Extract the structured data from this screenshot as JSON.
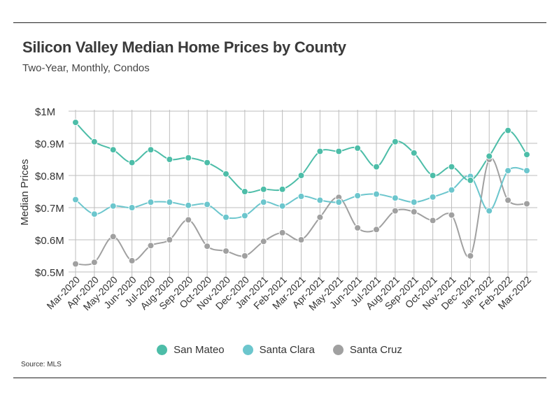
{
  "header": {
    "title": "Silicon Valley Median Home Prices by County",
    "subtitle": "Two-Year, Monthly, Condos"
  },
  "source": "Source:  MLS",
  "chart_data": {
    "type": "line",
    "ylabel": "Median Prices",
    "ylim": [
      0.5,
      1.0
    ],
    "y_ticks": [
      1.0,
      0.9,
      0.8,
      0.7,
      0.6,
      0.5
    ],
    "y_tick_labels": [
      "$1M",
      "$0.9M",
      "$0.8M",
      "$0.7M",
      "$0.6M",
      "$0.5M"
    ],
    "grid": true,
    "legend_position": "bottom-center",
    "categories": [
      "Mar-2020",
      "Apr-2020",
      "May-2020",
      "Jun-2020",
      "Jul-2020",
      "Aug-2020",
      "Sep-2020",
      "Oct-2020",
      "Nov-2020",
      "Dec-2020",
      "Jan-2021",
      "Feb-2021",
      "Mar-2021",
      "Apr-2021",
      "May-2021",
      "Jun-2021",
      "Jul-2021",
      "Aug-2021",
      "Sep-2021",
      "Oct-2021",
      "Nov-2021",
      "Dec-2021",
      "Jan-2022",
      "Feb-2022",
      "Mar-2022"
    ],
    "series": [
      {
        "name": "San Mateo",
        "color": "#4dbda8",
        "values": [
          0.965,
          0.905,
          0.88,
          0.84,
          0.88,
          0.85,
          0.855,
          0.84,
          0.805,
          0.75,
          0.757,
          0.757,
          0.8,
          0.875,
          0.875,
          0.885,
          0.827,
          0.905,
          0.87,
          0.8,
          0.827,
          0.785,
          0.86,
          0.94,
          0.865
        ]
      },
      {
        "name": "Santa Clara",
        "color": "#6cc6cd",
        "values": [
          0.725,
          0.68,
          0.705,
          0.7,
          0.717,
          0.717,
          0.707,
          0.71,
          0.67,
          0.675,
          0.717,
          0.705,
          0.735,
          0.723,
          0.717,
          0.737,
          0.742,
          0.73,
          0.717,
          0.733,
          0.755,
          0.797,
          0.69,
          0.815,
          0.815
        ]
      },
      {
        "name": "Santa Cruz",
        "color": "#a0a0a0",
        "values": [
          0.525,
          0.53,
          0.61,
          0.535,
          0.582,
          0.6,
          0.662,
          0.58,
          0.565,
          0.55,
          0.595,
          0.622,
          0.6,
          0.67,
          0.732,
          0.637,
          0.632,
          0.69,
          0.687,
          0.66,
          0.677,
          0.55,
          0.85,
          0.723,
          0.712
        ]
      }
    ]
  }
}
